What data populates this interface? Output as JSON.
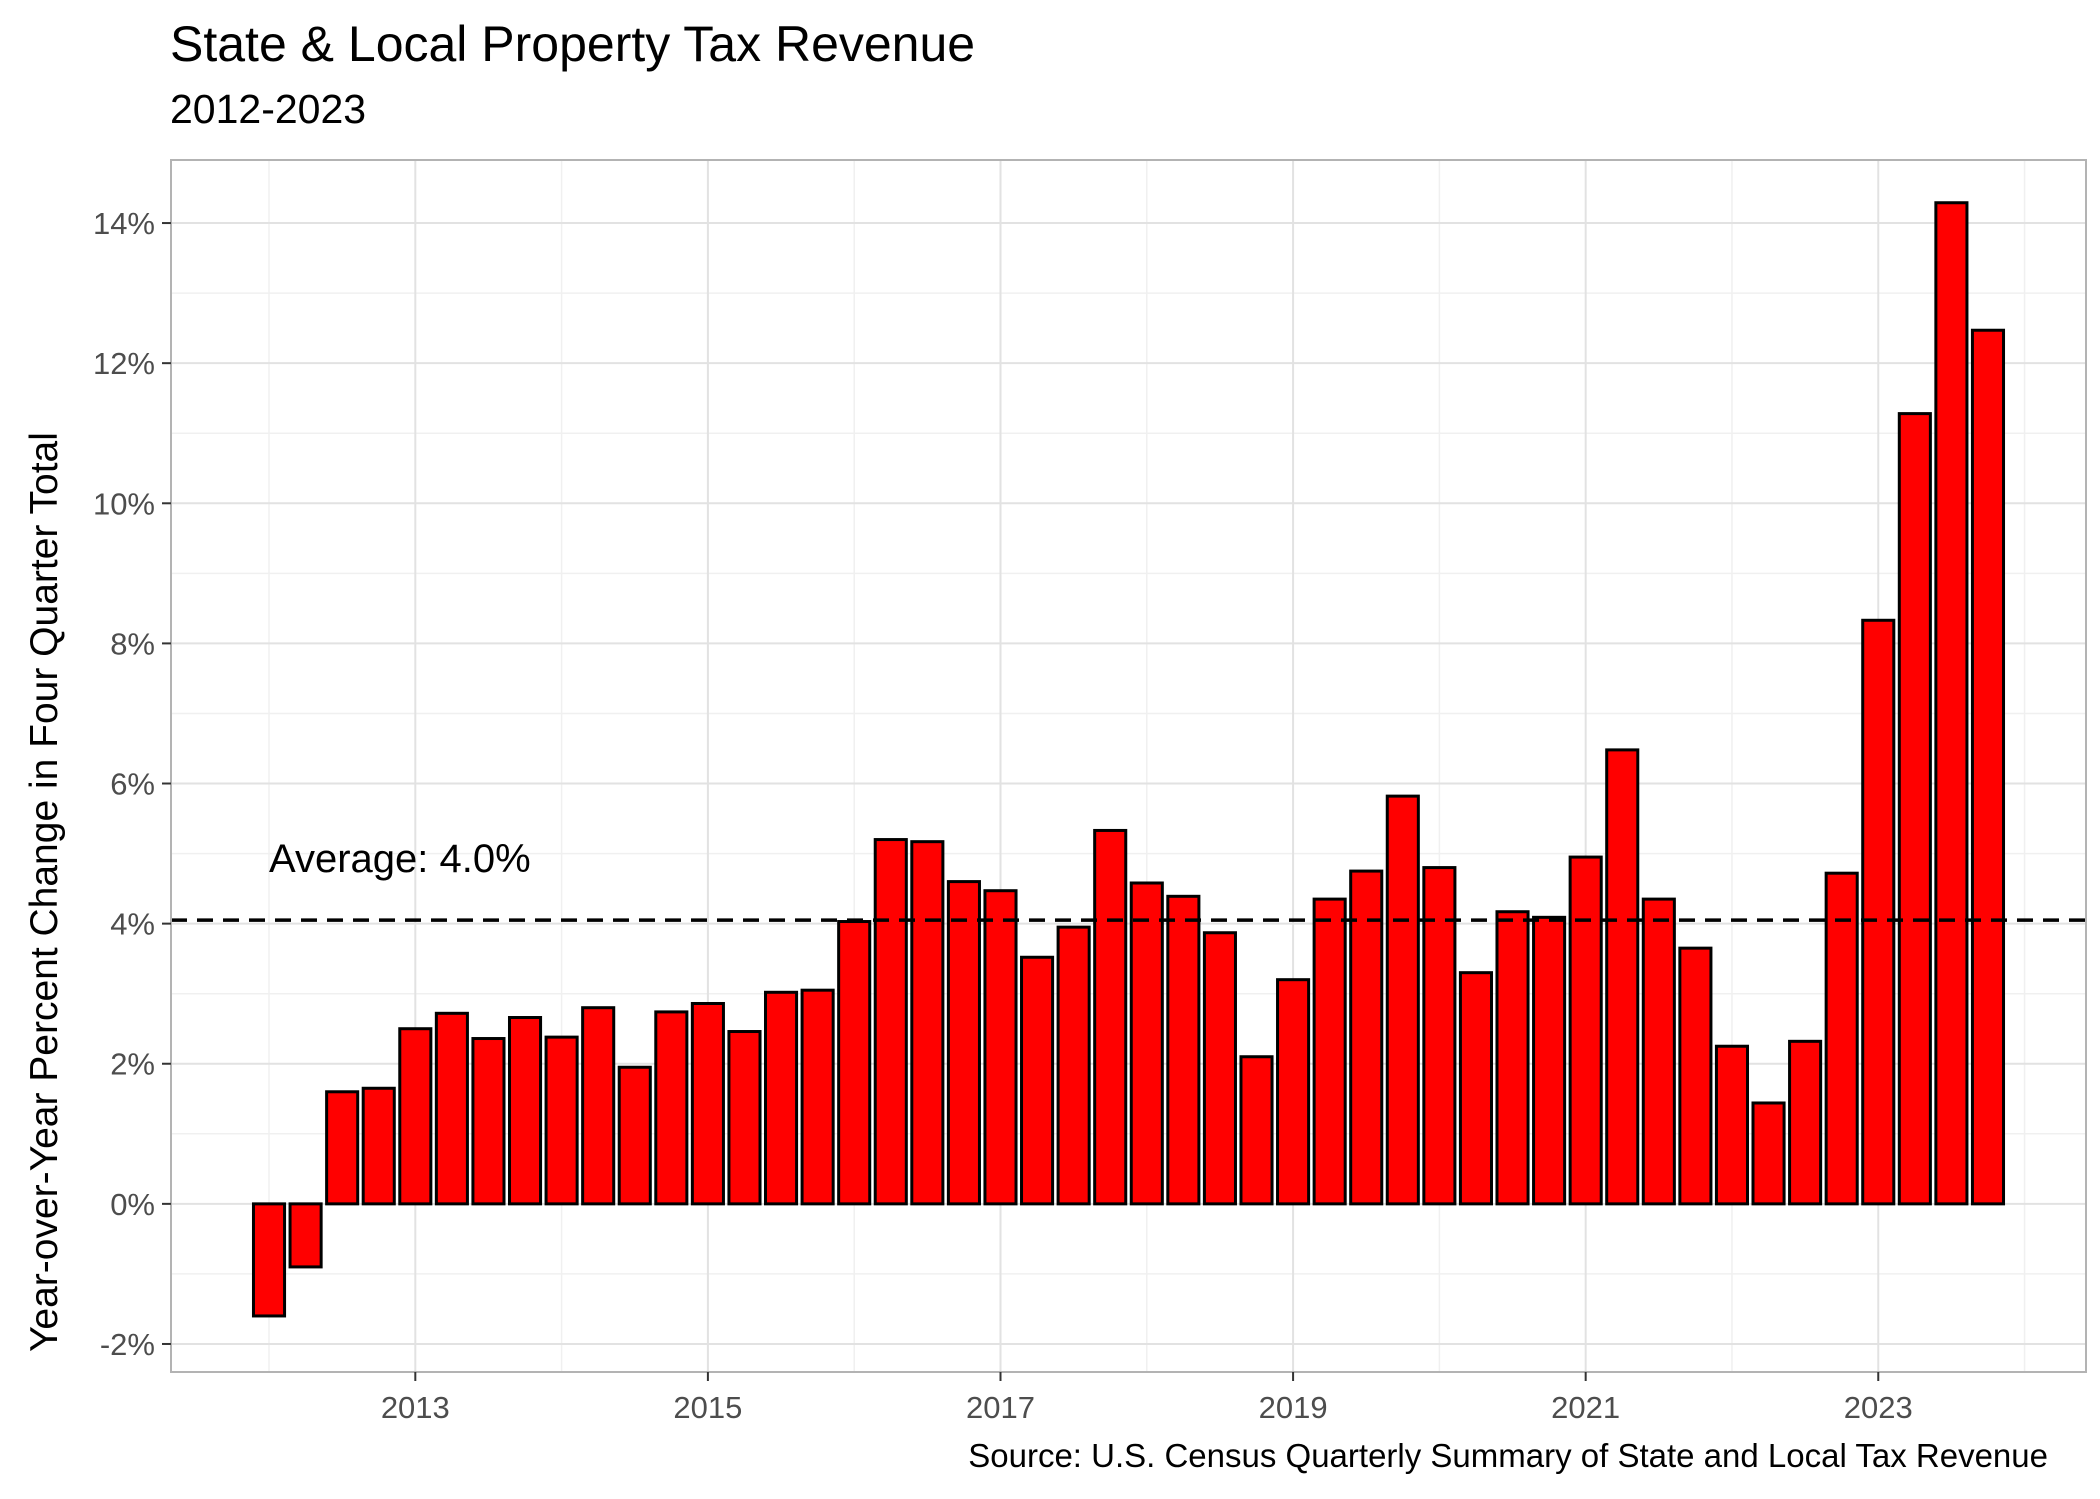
{
  "chart_data": {
    "type": "bar",
    "title": "State & Local Property Tax Revenue",
    "subtitle": "2012-2023",
    "ylabel": "Year-over-Year Percent Change in Four Quarter Total",
    "xlabel": "",
    "source": "Source: U.S. Census Quarterly Summary of State and Local Tax Revenue",
    "ylim": [
      -2.4,
      14.9
    ],
    "xlim": [
      2011.33,
      2024.42
    ],
    "y_ticks": [
      -2,
      0,
      2,
      4,
      6,
      8,
      10,
      12,
      14
    ],
    "y_tick_labels": [
      "-2%",
      "0%",
      "2%",
      "4%",
      "6%",
      "8%",
      "10%",
      "12%",
      "14%"
    ],
    "x_ticks": [
      2013,
      2015,
      2017,
      2019,
      2021,
      2023
    ],
    "x_tick_labels": [
      "2013",
      "2015",
      "2017",
      "2019",
      "2021",
      "2023"
    ],
    "average": 4.05,
    "average_label": "Average: 4.0%",
    "categories": [
      "2012 Q1",
      "2012 Q2",
      "2012 Q3",
      "2012 Q4",
      "2013 Q1",
      "2013 Q2",
      "2013 Q3",
      "2013 Q4",
      "2014 Q1",
      "2014 Q2",
      "2014 Q3",
      "2014 Q4",
      "2015 Q1",
      "2015 Q2",
      "2015 Q3",
      "2015 Q4",
      "2016 Q1",
      "2016 Q2",
      "2016 Q3",
      "2016 Q4",
      "2017 Q1",
      "2017 Q2",
      "2017 Q3",
      "2017 Q4",
      "2018 Q1",
      "2018 Q2",
      "2018 Q3",
      "2018 Q4",
      "2019 Q1",
      "2019 Q2",
      "2019 Q3",
      "2019 Q4",
      "2020 Q1",
      "2020 Q2",
      "2020 Q3",
      "2020 Q4",
      "2021 Q1",
      "2021 Q2",
      "2021 Q3",
      "2021 Q4",
      "2022 Q1",
      "2022 Q2",
      "2022 Q3",
      "2022 Q4",
      "2023 Q1",
      "2023 Q2",
      "2023 Q3",
      "2023 Q4"
    ],
    "values": [
      -1.6,
      -0.9,
      1.6,
      1.65,
      2.5,
      2.72,
      2.36,
      2.66,
      2.38,
      2.8,
      1.95,
      2.74,
      2.86,
      2.46,
      3.02,
      3.05,
      4.03,
      5.2,
      5.17,
      4.6,
      4.47,
      3.52,
      3.95,
      5.33,
      4.58,
      4.39,
      3.87,
      2.1,
      3.2,
      4.35,
      4.75,
      5.82,
      4.8,
      3.3,
      4.17,
      4.09,
      4.95,
      6.48,
      4.35,
      3.65,
      2.25,
      1.44,
      2.32,
      4.72,
      8.33,
      11.28,
      14.29,
      12.47
    ],
    "bar_color": "#ff0000",
    "bar_outline": "#000000",
    "grid": true,
    "legend": "none"
  }
}
